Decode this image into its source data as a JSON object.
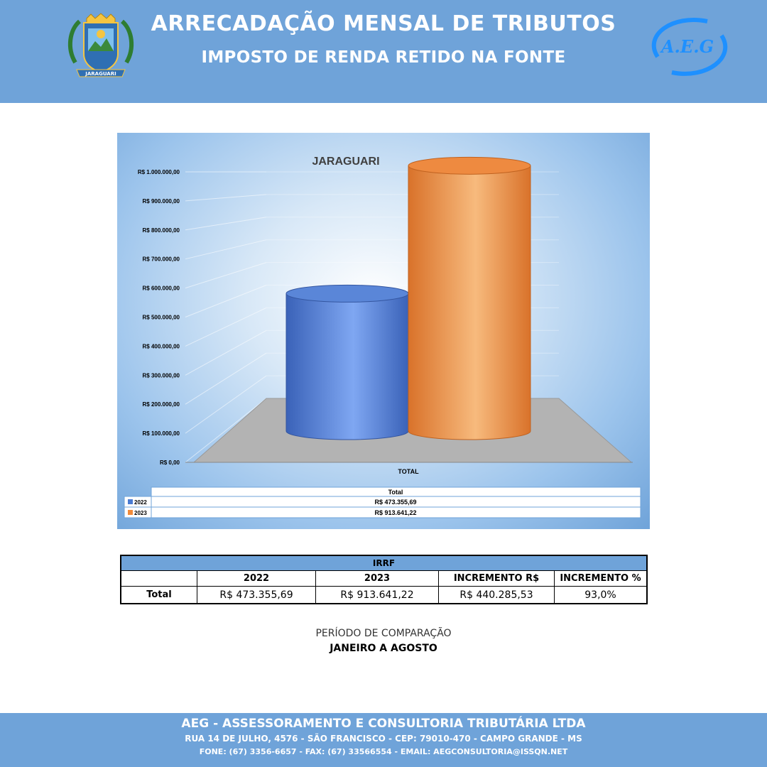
{
  "header": {
    "title": "ARRECADAÇÃO MENSAL DE TRIBUTOS",
    "subtitle": "IMPOSTO DE RENDA RETIDO NA FONTE",
    "left_logo": {
      "icon": "municipal-coat-of-arms",
      "text": "JARAGUARI"
    },
    "right_logo": {
      "icon": "aeg-swirl-logo",
      "text": "A.E.G"
    }
  },
  "chart_data": {
    "type": "bar",
    "title": "JARAGUARI",
    "categories": [
      "TOTAL"
    ],
    "series": [
      {
        "name": "2022",
        "values": [
          473355.69
        ],
        "color": "#4a7bd1"
      },
      {
        "name": "2023",
        "values": [
          913641.22
        ],
        "color": "#f08a3a"
      }
    ],
    "ylim": [
      0,
      1000000
    ],
    "yticks": [
      "R$ 0,00",
      "R$ 100.000,00",
      "R$ 200.000,00",
      "R$ 300.000,00",
      "R$ 400.000,00",
      "R$ 500.000,00",
      "R$ 600.000,00",
      "R$ 700.000,00",
      "R$ 800.000,00",
      "R$ 900.000,00",
      "R$ 1.000.000,00"
    ],
    "data_table": {
      "header": "Total",
      "rows": [
        {
          "label": "2022",
          "value": "R$ 473.355,69"
        },
        {
          "label": "2023",
          "value": "R$ 913.641,22"
        }
      ]
    }
  },
  "table": {
    "title": "IRRF",
    "columns": [
      "2022",
      "2023",
      "INCREMENTO R$",
      "INCREMENTO %"
    ],
    "row": {
      "label": "Total",
      "values": [
        "R$ 473.355,69",
        "R$ 913.641,22",
        "R$ 440.285,53",
        "93,0%"
      ]
    }
  },
  "period": {
    "label": "PERÍODO DE COMPARAÇÃO",
    "value": "JANEIRO A AGOSTO"
  },
  "footer": {
    "company": "AEG - ASSESSORAMENTO E CONSULTORIA TRIBUTÁRIA LTDA",
    "address": "RUA 14 DE JULHO, 4576 - SÃO FRANCISCO - CEP: 79010-470 - CAMPO GRANDE - MS",
    "contact": "FONE: (67) 3356-6657 - FAX: (67) 33566554 - EMAIL: AEGCONSULTORIA@ISSQN.NET"
  }
}
